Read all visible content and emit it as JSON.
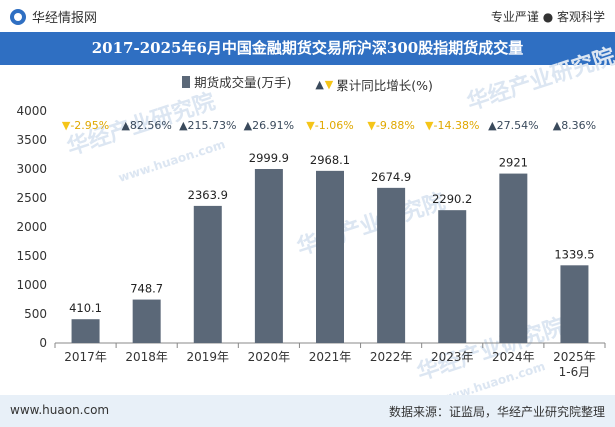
{
  "header": {
    "brand": "华经情报网",
    "tagline": "专业严谨 ● 客观科学"
  },
  "title": "2017-2025年6月中国金融期货交易所沪深300股指期货成交量",
  "legend": {
    "bar_label": "期货成交量(万手)",
    "growth_label": "累计同比增长(%)"
  },
  "watermark": "华经产业研究院",
  "watermark_url": "www.huaon.com",
  "footer": {
    "url": "www.huaon.com",
    "source": "数据来源：证监局，华经产业研究院整理"
  },
  "colors": {
    "bar": "#5b6878",
    "up": "#3a4a5c",
    "down": "#f5c518",
    "title_bg": "#2f6fc2"
  },
  "chart_data": {
    "type": "bar",
    "categories": [
      "2017年",
      "2018年",
      "2019年",
      "2020年",
      "2021年",
      "2022年",
      "2023年",
      "2024年",
      "2025年\n1-6月"
    ],
    "series": [
      {
        "name": "期货成交量(万手)",
        "values": [
          410.1,
          748.7,
          2363.9,
          2999.9,
          2968.1,
          2674.9,
          2290.2,
          2921,
          1339.5
        ]
      },
      {
        "name": "累计同比增长(%)",
        "values": [
          -2.95,
          82.56,
          215.73,
          26.91,
          -1.06,
          -9.88,
          -14.38,
          27.54,
          8.36
        ]
      }
    ],
    "bar_labels": [
      "410.1",
      "748.7",
      "2363.9",
      "2999.9",
      "2968.1",
      "2674.9",
      "2290.2",
      "2921",
      "1339.5"
    ],
    "growth_labels": [
      "-2.95%",
      "82.56%",
      "215.73%",
      "26.91%",
      "-1.06%",
      "-9.88%",
      "-14.38%",
      "27.54%",
      "8.36%"
    ],
    "yticks": [
      "0",
      "500",
      "1000",
      "1500",
      "2000",
      "2500",
      "3000",
      "3500",
      "4000"
    ],
    "ylim": [
      0,
      4000
    ]
  }
}
